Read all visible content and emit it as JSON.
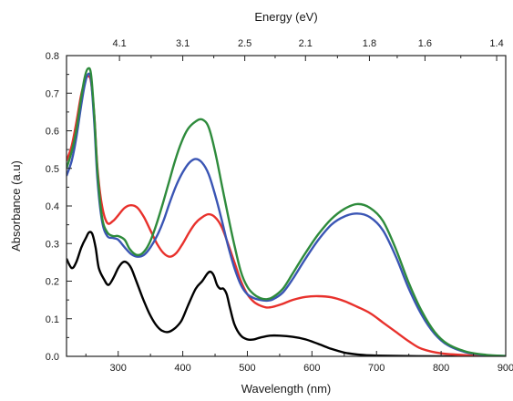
{
  "chart_data": {
    "type": "line",
    "title": "",
    "xlabel": "Wavelength (nm)",
    "ylabel": "Absorbance (a.u)",
    "top_xlabel": "Energy (eV)",
    "xlim": [
      220,
      900
    ],
    "ylim": [
      0,
      0.8
    ],
    "x_ticks": [
      300,
      400,
      500,
      600,
      700,
      800,
      900
    ],
    "y_ticks": [
      0.0,
      0.1,
      0.2,
      0.3,
      0.4,
      0.5,
      0.6,
      0.7,
      0.8
    ],
    "x_tick_labels": [
      "300",
      "400",
      "500",
      "600",
      "700",
      "800",
      "900"
    ],
    "y_tick_labels": [
      "0.0",
      "0.1",
      "0.2",
      "0.3",
      "0.4",
      "0.5",
      "0.6",
      "0.7",
      "0.8"
    ],
    "top_ticks": [
      {
        "label": "4.1",
        "wavelength": 302
      },
      {
        "label": "3.1",
        "wavelength": 400
      },
      {
        "label": "2.5",
        "wavelength": 496
      },
      {
        "label": "2.1",
        "wavelength": 590
      },
      {
        "label": "1.8",
        "wavelength": 689
      },
      {
        "label": "1.6",
        "wavelength": 775
      },
      {
        "label": "1.4",
        "wavelength": 886
      }
    ],
    "grid": false,
    "legend": "none",
    "series": [
      {
        "color": "#000000",
        "points": [
          [
            220,
            0.26
          ],
          [
            228,
            0.235
          ],
          [
            235,
            0.25
          ],
          [
            243,
            0.29
          ],
          [
            250,
            0.315
          ],
          [
            255,
            0.33
          ],
          [
            260,
            0.325
          ],
          [
            265,
            0.29
          ],
          [
            270,
            0.235
          ],
          [
            278,
            0.205
          ],
          [
            285,
            0.19
          ],
          [
            293,
            0.21
          ],
          [
            300,
            0.235
          ],
          [
            307,
            0.25
          ],
          [
            313,
            0.25
          ],
          [
            320,
            0.235
          ],
          [
            328,
            0.2
          ],
          [
            338,
            0.155
          ],
          [
            348,
            0.115
          ],
          [
            358,
            0.085
          ],
          [
            368,
            0.068
          ],
          [
            378,
            0.065
          ],
          [
            388,
            0.075
          ],
          [
            398,
            0.095
          ],
          [
            408,
            0.135
          ],
          [
            420,
            0.18
          ],
          [
            430,
            0.2
          ],
          [
            438,
            0.22
          ],
          [
            443,
            0.225
          ],
          [
            448,
            0.215
          ],
          [
            453,
            0.19
          ],
          [
            458,
            0.18
          ],
          [
            463,
            0.18
          ],
          [
            468,
            0.165
          ],
          [
            473,
            0.13
          ],
          [
            480,
            0.085
          ],
          [
            490,
            0.055
          ],
          [
            500,
            0.045
          ],
          [
            510,
            0.045
          ],
          [
            520,
            0.05
          ],
          [
            535,
            0.055
          ],
          [
            550,
            0.055
          ],
          [
            570,
            0.052
          ],
          [
            590,
            0.045
          ],
          [
            610,
            0.033
          ],
          [
            630,
            0.02
          ],
          [
            650,
            0.01
          ],
          [
            670,
            0.005
          ],
          [
            700,
            0.002
          ],
          [
            800,
            0.0
          ],
          [
            900,
            0.0
          ]
        ]
      },
      {
        "color": "#e8312c",
        "points": [
          [
            220,
            0.52
          ],
          [
            228,
            0.56
          ],
          [
            235,
            0.62
          ],
          [
            242,
            0.69
          ],
          [
            248,
            0.73
          ],
          [
            253,
            0.745
          ],
          [
            258,
            0.73
          ],
          [
            263,
            0.64
          ],
          [
            268,
            0.5
          ],
          [
            275,
            0.4
          ],
          [
            283,
            0.355
          ],
          [
            292,
            0.36
          ],
          [
            300,
            0.375
          ],
          [
            310,
            0.395
          ],
          [
            320,
            0.402
          ],
          [
            330,
            0.395
          ],
          [
            340,
            0.37
          ],
          [
            350,
            0.335
          ],
          [
            360,
            0.3
          ],
          [
            370,
            0.275
          ],
          [
            380,
            0.265
          ],
          [
            390,
            0.275
          ],
          [
            400,
            0.3
          ],
          [
            410,
            0.33
          ],
          [
            420,
            0.355
          ],
          [
            430,
            0.37
          ],
          [
            440,
            0.378
          ],
          [
            450,
            0.37
          ],
          [
            460,
            0.345
          ],
          [
            470,
            0.3
          ],
          [
            480,
            0.25
          ],
          [
            490,
            0.2
          ],
          [
            500,
            0.165
          ],
          [
            510,
            0.145
          ],
          [
            520,
            0.135
          ],
          [
            530,
            0.13
          ],
          [
            540,
            0.132
          ],
          [
            555,
            0.14
          ],
          [
            570,
            0.15
          ],
          [
            590,
            0.158
          ],
          [
            610,
            0.16
          ],
          [
            630,
            0.157
          ],
          [
            650,
            0.147
          ],
          [
            670,
            0.132
          ],
          [
            690,
            0.115
          ],
          [
            710,
            0.09
          ],
          [
            730,
            0.065
          ],
          [
            750,
            0.04
          ],
          [
            770,
            0.02
          ],
          [
            800,
            0.008
          ],
          [
            850,
            0.002
          ],
          [
            900,
            0.0
          ]
        ]
      },
      {
        "color": "#3a55b4",
        "points": [
          [
            220,
            0.48
          ],
          [
            228,
            0.52
          ],
          [
            235,
            0.58
          ],
          [
            242,
            0.66
          ],
          [
            248,
            0.72
          ],
          [
            253,
            0.75
          ],
          [
            258,
            0.735
          ],
          [
            263,
            0.62
          ],
          [
            268,
            0.47
          ],
          [
            275,
            0.36
          ],
          [
            283,
            0.32
          ],
          [
            292,
            0.315
          ],
          [
            300,
            0.31
          ],
          [
            310,
            0.29
          ],
          [
            320,
            0.272
          ],
          [
            330,
            0.265
          ],
          [
            340,
            0.27
          ],
          [
            350,
            0.29
          ],
          [
            360,
            0.32
          ],
          [
            370,
            0.36
          ],
          [
            380,
            0.41
          ],
          [
            390,
            0.455
          ],
          [
            400,
            0.49
          ],
          [
            410,
            0.515
          ],
          [
            420,
            0.525
          ],
          [
            430,
            0.515
          ],
          [
            440,
            0.485
          ],
          [
            450,
            0.43
          ],
          [
            460,
            0.365
          ],
          [
            470,
            0.295
          ],
          [
            480,
            0.235
          ],
          [
            490,
            0.19
          ],
          [
            500,
            0.165
          ],
          [
            510,
            0.155
          ],
          [
            520,
            0.15
          ],
          [
            530,
            0.148
          ],
          [
            540,
            0.152
          ],
          [
            555,
            0.17
          ],
          [
            570,
            0.205
          ],
          [
            590,
            0.26
          ],
          [
            610,
            0.31
          ],
          [
            630,
            0.35
          ],
          [
            650,
            0.372
          ],
          [
            670,
            0.38
          ],
          [
            690,
            0.37
          ],
          [
            710,
            0.335
          ],
          [
            730,
            0.265
          ],
          [
            750,
            0.18
          ],
          [
            770,
            0.11
          ],
          [
            790,
            0.06
          ],
          [
            810,
            0.03
          ],
          [
            840,
            0.01
          ],
          [
            870,
            0.003
          ],
          [
            900,
            0.001
          ]
        ]
      },
      {
        "color": "#2e8b3c",
        "points": [
          [
            220,
            0.5
          ],
          [
            228,
            0.545
          ],
          [
            235,
            0.6
          ],
          [
            242,
            0.68
          ],
          [
            248,
            0.74
          ],
          [
            253,
            0.765
          ],
          [
            258,
            0.75
          ],
          [
            263,
            0.64
          ],
          [
            268,
            0.49
          ],
          [
            275,
            0.37
          ],
          [
            283,
            0.33
          ],
          [
            292,
            0.32
          ],
          [
            300,
            0.32
          ],
          [
            310,
            0.31
          ],
          [
            318,
            0.285
          ],
          [
            328,
            0.27
          ],
          [
            338,
            0.275
          ],
          [
            348,
            0.3
          ],
          [
            358,
            0.345
          ],
          [
            368,
            0.4
          ],
          [
            378,
            0.46
          ],
          [
            388,
            0.52
          ],
          [
            398,
            0.57
          ],
          [
            408,
            0.605
          ],
          [
            420,
            0.625
          ],
          [
            430,
            0.63
          ],
          [
            440,
            0.61
          ],
          [
            450,
            0.545
          ],
          [
            460,
            0.46
          ],
          [
            470,
            0.375
          ],
          [
            480,
            0.295
          ],
          [
            490,
            0.225
          ],
          [
            500,
            0.185
          ],
          [
            510,
            0.165
          ],
          [
            520,
            0.155
          ],
          [
            530,
            0.152
          ],
          [
            540,
            0.158
          ],
          [
            555,
            0.18
          ],
          [
            570,
            0.22
          ],
          [
            590,
            0.275
          ],
          [
            610,
            0.325
          ],
          [
            630,
            0.365
          ],
          [
            650,
            0.392
          ],
          [
            670,
            0.405
          ],
          [
            690,
            0.395
          ],
          [
            710,
            0.36
          ],
          [
            730,
            0.285
          ],
          [
            750,
            0.195
          ],
          [
            770,
            0.12
          ],
          [
            790,
            0.065
          ],
          [
            810,
            0.033
          ],
          [
            840,
            0.012
          ],
          [
            870,
            0.004
          ],
          [
            900,
            0.001
          ]
        ]
      }
    ]
  }
}
